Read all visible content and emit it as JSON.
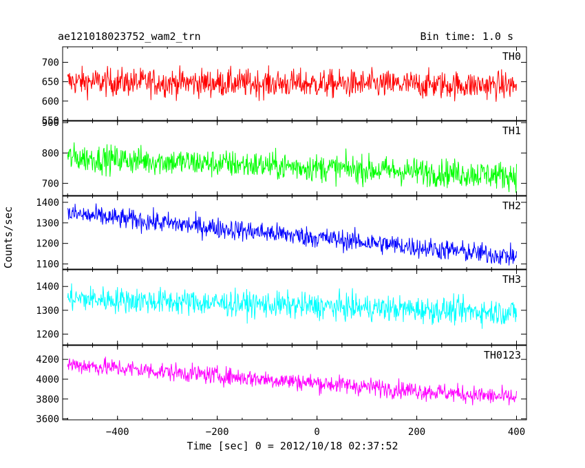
{
  "chart_data": {
    "type": "line",
    "title": "ae121018023752_wam2_trn",
    "bin_time_label": "Bin time: 1.0 s",
    "xlabel": "Time [sec] 0 = 2012/10/18 02:37:52",
    "ylabel": "Counts/sec",
    "xlim": [
      -510,
      420
    ],
    "x_ticks": [
      -400,
      -200,
      0,
      200,
      400
    ],
    "x_tick_labels": [
      "−400",
      "−200",
      "0",
      "200",
      "400"
    ],
    "x_start": -500,
    "x_end": 400,
    "grid": false,
    "panels": [
      {
        "name": "TH0",
        "color": "#ff0000",
        "ylim": [
          550,
          740
        ],
        "y_ticks": [
          550,
          600,
          650,
          700
        ],
        "y_tick_labels": [
          "550",
          "600",
          "650",
          "700"
        ],
        "trend": [
          [
            -500,
            650
          ],
          [
            400,
            640
          ]
        ],
        "noise": 30
      },
      {
        "name": "TH1",
        "color": "#00ff00",
        "ylim": [
          660,
          905
        ],
        "y_ticks": [
          700,
          800,
          900
        ],
        "y_tick_labels": [
          "700",
          "800",
          "900"
        ],
        "trend": [
          [
            -500,
            785
          ],
          [
            400,
            725
          ]
        ],
        "noise": 38
      },
      {
        "name": "TH2",
        "color": "#0000ff",
        "ylim": [
          1075,
          1430
        ],
        "y_ticks": [
          1100,
          1200,
          1300,
          1400
        ],
        "y_tick_labels": [
          "1100",
          "1200",
          "1300",
          "1400"
        ],
        "trend": [
          [
            -500,
            1345
          ],
          [
            400,
            1135
          ]
        ],
        "noise": 42
      },
      {
        "name": "TH3",
        "color": "#00ffff",
        "ylim": [
          1155,
          1470
        ],
        "y_ticks": [
          1200,
          1300,
          1400
        ],
        "y_tick_labels": [
          "1200",
          "1300",
          "1400"
        ],
        "trend": [
          [
            -500,
            1350
          ],
          [
            400,
            1290
          ]
        ],
        "noise": 45
      },
      {
        "name": "TH0123",
        "color": "#ff00ff",
        "ylim": [
          3590,
          4340
        ],
        "y_ticks": [
          3600,
          3800,
          4000,
          4200
        ],
        "y_tick_labels": [
          "3600",
          "3800",
          "4000",
          "4200"
        ],
        "trend": [
          [
            -500,
            4150
          ],
          [
            400,
            3810
          ]
        ],
        "noise": 75
      }
    ]
  }
}
